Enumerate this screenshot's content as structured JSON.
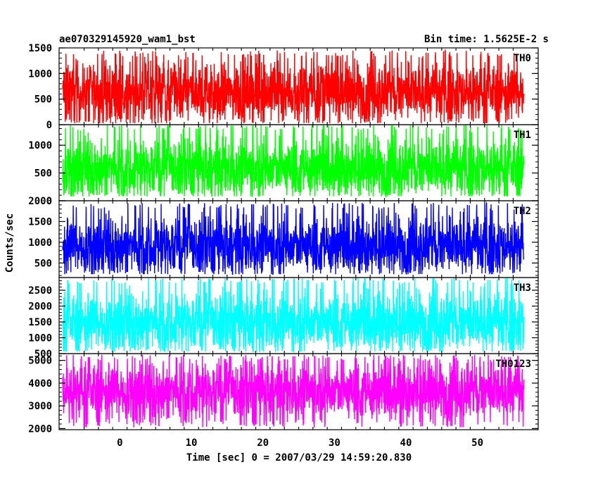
{
  "header": {
    "title": "ae070329145920_wam1_bst",
    "bin_time": "Bin time: 1.5625E-2 s"
  },
  "chart_data": {
    "type": "line",
    "xlabel": "Time [sec] 0 = 2007/03/29 14:59:20.830",
    "ylabel": "Counts/sec",
    "xlim": [
      -8.5,
      58.5
    ],
    "x_ticks": [
      0,
      10,
      20,
      30,
      40,
      50
    ],
    "x_tick_labels": [
      "0",
      "10",
      "20",
      "30",
      "40",
      "50"
    ],
    "data_x_range": [
      -8.0,
      56.5
    ],
    "panels": [
      {
        "name": "TH0",
        "color": "#ff0000",
        "ylim": [
          0,
          1500
        ],
        "y_ticks": [
          0,
          500,
          1000,
          1500
        ],
        "y_tick_labels": [
          "0",
          "500",
          "1000",
          "1500"
        ],
        "approx_mean": 640,
        "approx_min": 30,
        "approx_max": 1450
      },
      {
        "name": "TH1",
        "color": "#00ff00",
        "ylim": [
          0,
          1370
        ],
        "y_ticks": [
          0,
          500,
          1000
        ],
        "y_tick_labels": [
          "0",
          "500",
          "1000"
        ],
        "approx_mean": 590,
        "approx_min": 80,
        "approx_max": 1380
      },
      {
        "name": "TH2",
        "color": "#0000ff",
        "ylim": [
          150,
          2000
        ],
        "y_ticks": [
          500,
          1000,
          1500,
          2000
        ],
        "y_tick_labels": [
          "500",
          "1000",
          "1500",
          "2000"
        ],
        "approx_mean": 920,
        "approx_min": 230,
        "approx_max": 1950
      },
      {
        "name": "TH3",
        "color": "#00ffff",
        "ylim": [
          500,
          2900
        ],
        "y_ticks": [
          500,
          1000,
          1500,
          2000,
          2500
        ],
        "y_tick_labels": [
          "500",
          "1000",
          "1500",
          "2000",
          "2500"
        ],
        "approx_mean": 1500,
        "approx_min": 560,
        "approx_max": 2900
      },
      {
        "name": "TH0123",
        "color": "#ff00ff",
        "ylim": [
          1950,
          5300
        ],
        "y_ticks": [
          2000,
          3000,
          4000,
          5000
        ],
        "y_tick_labels": [
          "2000",
          "3000",
          "4000",
          "5000"
        ],
        "approx_mean": 3650,
        "approx_min": 2050,
        "approx_max": 5250
      }
    ]
  }
}
